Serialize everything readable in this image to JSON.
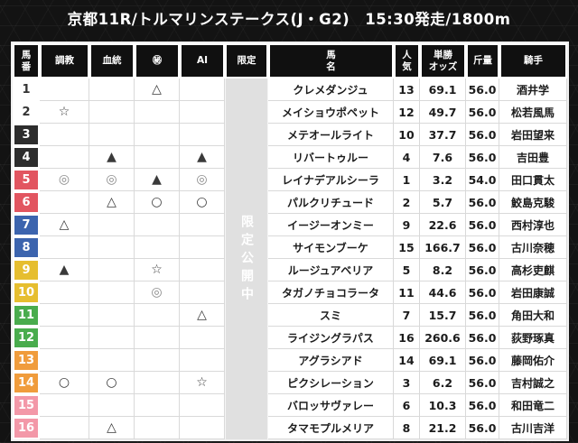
{
  "title": "京都11R/トルマリンステークス(J・G2)　15:30発走/1800m",
  "table": {
    "headers": [
      "馬\n番",
      "調教",
      "血統",
      "㊙",
      "AI",
      "限定",
      "馬\n名",
      "人\n気",
      "単勝\nオッズ",
      "斤量",
      "騎手"
    ],
    "limited_label": "限定公開中",
    "rows": [
      {
        "num": "1",
        "frame": "white",
        "training": "",
        "blood": "",
        "secret": "△",
        "ai": "",
        "name": "クレメダンジュ",
        "pop": "13",
        "odds": "69.1",
        "weight": "56.0",
        "jockey": "酒井学"
      },
      {
        "num": "2",
        "frame": "white",
        "training": "☆",
        "blood": "",
        "secret": "",
        "ai": "",
        "name": "メイショウポペット",
        "pop": "12",
        "odds": "49.7",
        "weight": "56.0",
        "jockey": "松若風馬"
      },
      {
        "num": "3",
        "frame": "black",
        "training": "",
        "blood": "",
        "secret": "",
        "ai": "",
        "name": "メテオールライト",
        "pop": "10",
        "odds": "37.7",
        "weight": "56.0",
        "jockey": "岩田望来"
      },
      {
        "num": "4",
        "frame": "black",
        "training": "",
        "blood": "▲",
        "secret": "",
        "ai": "▲",
        "name": "リバートゥルー",
        "pop": "4",
        "odds": "7.6",
        "weight": "56.0",
        "jockey": "吉田豊"
      },
      {
        "num": "5",
        "frame": "red",
        "training": "◎",
        "blood": "◎",
        "secret": "▲",
        "ai": "◎",
        "name": "レイナデアルシーラ",
        "pop": "1",
        "odds": "3.2",
        "weight": "54.0",
        "jockey": "田口貫太"
      },
      {
        "num": "6",
        "frame": "red",
        "training": "",
        "blood": "△",
        "secret": "○",
        "ai": "○",
        "name": "パルクリチュード",
        "pop": "2",
        "odds": "5.7",
        "weight": "56.0",
        "jockey": "鮫島克駿"
      },
      {
        "num": "7",
        "frame": "blue",
        "training": "△",
        "blood": "",
        "secret": "",
        "ai": "",
        "name": "イージーオンミー",
        "pop": "9",
        "odds": "22.6",
        "weight": "56.0",
        "jockey": "西村淳也"
      },
      {
        "num": "8",
        "frame": "blue",
        "training": "",
        "blood": "",
        "secret": "",
        "ai": "",
        "name": "サイモンブーケ",
        "pop": "15",
        "odds": "166.7",
        "weight": "56.0",
        "jockey": "古川奈穂"
      },
      {
        "num": "9",
        "frame": "yellow",
        "training": "▲",
        "blood": "",
        "secret": "☆",
        "ai": "",
        "name": "ルージュアベリア",
        "pop": "5",
        "odds": "8.2",
        "weight": "56.0",
        "jockey": "高杉吏麒"
      },
      {
        "num": "10",
        "frame": "yellow",
        "training": "",
        "blood": "",
        "secret": "◎",
        "ai": "",
        "name": "タガノチョコラータ",
        "pop": "11",
        "odds": "44.6",
        "weight": "56.0",
        "jockey": "岩田康誠"
      },
      {
        "num": "11",
        "frame": "green",
        "training": "",
        "blood": "",
        "secret": "",
        "ai": "△",
        "name": "スミ",
        "pop": "7",
        "odds": "15.7",
        "weight": "56.0",
        "jockey": "角田大和"
      },
      {
        "num": "12",
        "frame": "green",
        "training": "",
        "blood": "",
        "secret": "",
        "ai": "",
        "name": "ライジングラパス",
        "pop": "16",
        "odds": "260.6",
        "weight": "56.0",
        "jockey": "荻野琢真"
      },
      {
        "num": "13",
        "frame": "orange",
        "training": "",
        "blood": "",
        "secret": "",
        "ai": "",
        "name": "アグラシアド",
        "pop": "14",
        "odds": "69.1",
        "weight": "56.0",
        "jockey": "藤岡佑介"
      },
      {
        "num": "14",
        "frame": "orange",
        "training": "○",
        "blood": "○",
        "secret": "",
        "ai": "☆",
        "name": "ピクシレーション",
        "pop": "3",
        "odds": "6.2",
        "weight": "56.0",
        "jockey": "吉村誠之"
      },
      {
        "num": "15",
        "frame": "pink",
        "training": "",
        "blood": "",
        "secret": "",
        "ai": "",
        "name": "バロッサヴァレー",
        "pop": "6",
        "odds": "10.3",
        "weight": "56.0",
        "jockey": "和田竜二"
      },
      {
        "num": "16",
        "frame": "pink",
        "training": "",
        "blood": "△",
        "secret": "",
        "ai": "",
        "name": "タマモプルメリア",
        "pop": "8",
        "odds": "21.2",
        "weight": "56.0",
        "jockey": "古川吉洋"
      }
    ]
  },
  "colors": {
    "background": "#131313",
    "header_cell": "#101010",
    "limited_strip": "#e0e0e0",
    "double_circle_mark": "#8a8a8a",
    "frames": {
      "white": {
        "bg": "#ffffff",
        "text": "#333333"
      },
      "black": {
        "bg": "#2d2d2d",
        "text": "#ffffff"
      },
      "red": {
        "bg": "#e25560",
        "text": "#ffffff"
      },
      "blue": {
        "bg": "#3c64ae",
        "text": "#ffffff"
      },
      "yellow": {
        "bg": "#e6be2f",
        "text": "#ffffff"
      },
      "green": {
        "bg": "#49ac4d",
        "text": "#ffffff"
      },
      "orange": {
        "bg": "#f09c3c",
        "text": "#ffffff"
      },
      "pink": {
        "bg": "#f398a8",
        "text": "#ffffff"
      }
    }
  }
}
